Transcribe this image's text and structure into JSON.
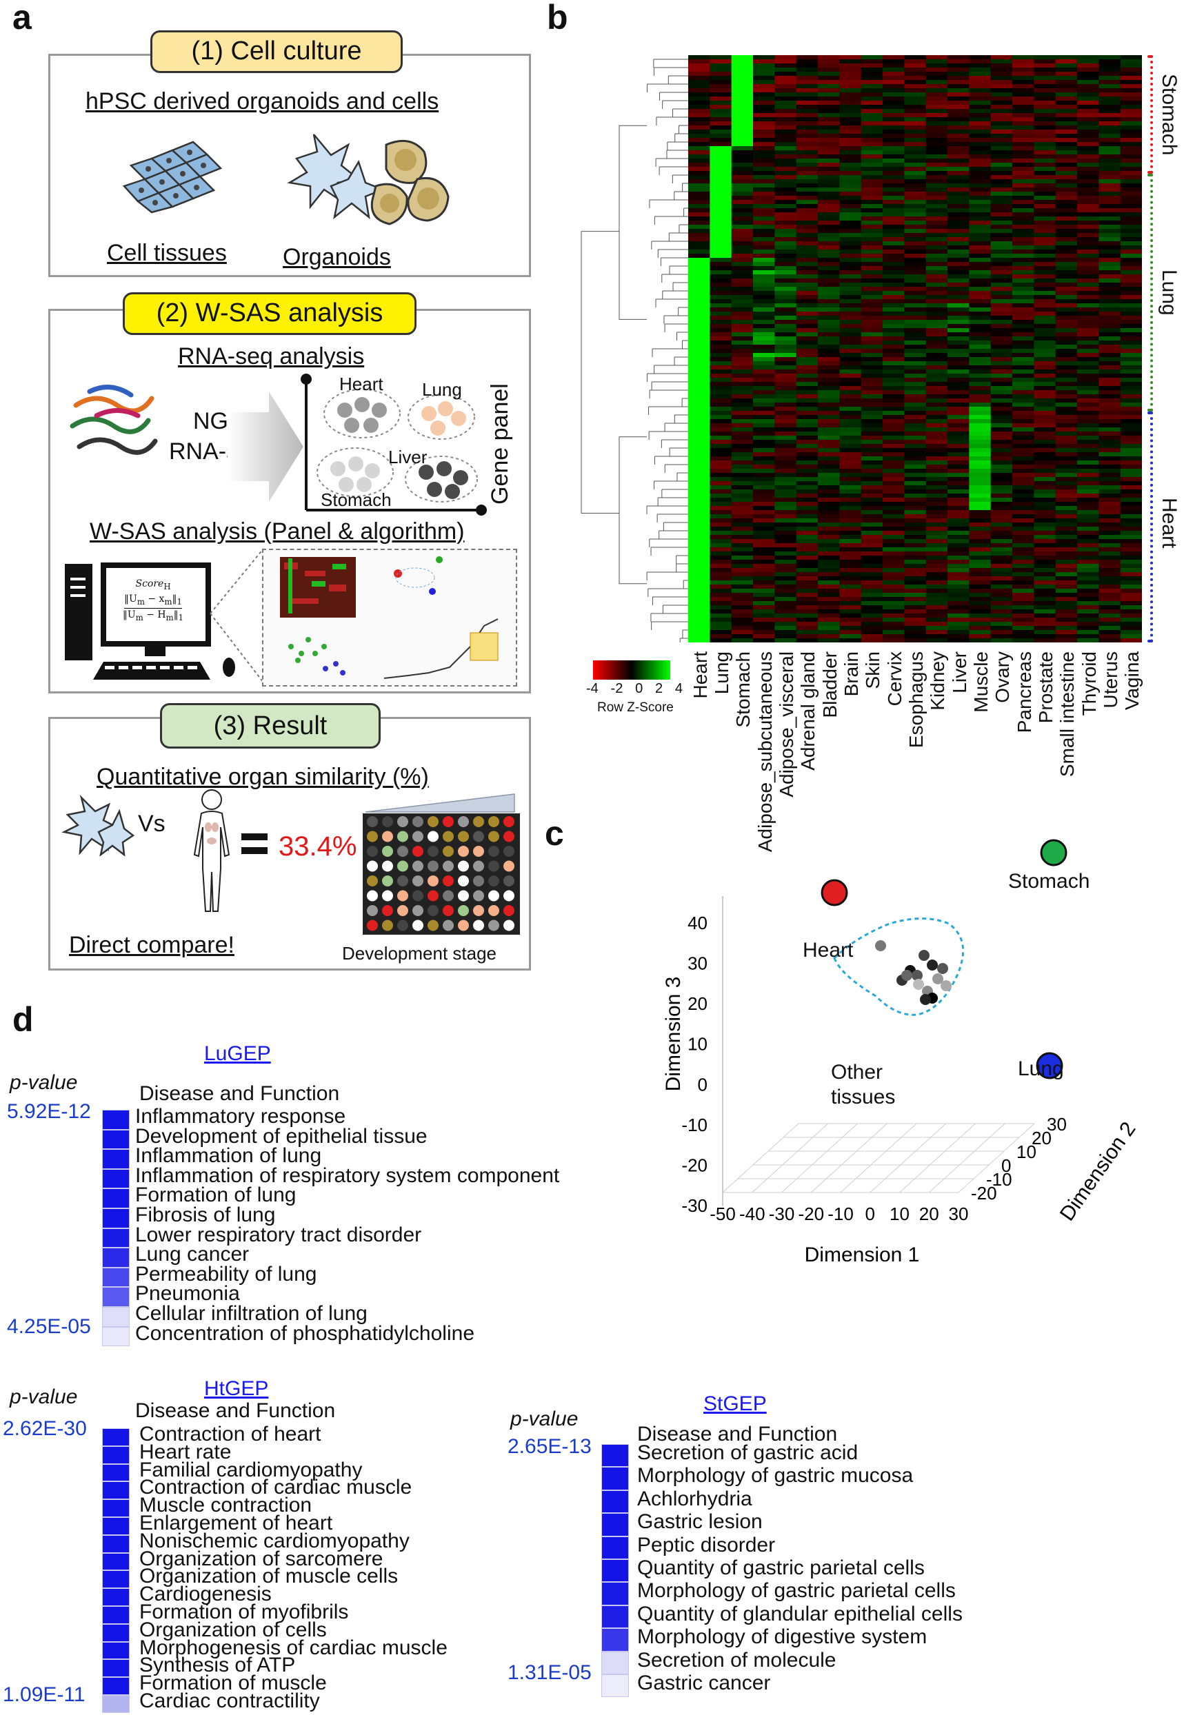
{
  "panels": {
    "a": "a",
    "b": "b",
    "c": "c",
    "d": "d"
  },
  "a": {
    "step1": {
      "tag": "(1) Cell culture",
      "title": "hPSC derived organoids and cells",
      "cell_tissues": "Cell tissues",
      "organoids": "Organoids"
    },
    "step2": {
      "tag": "(2) W-SAS analysis",
      "rnaseq_title": "RNA-seq analysis",
      "ngs": "NGS",
      "rnaseq": "RNA-seq",
      "heart": "Heart",
      "lung": "Lung",
      "liver": "Liver",
      "stomach": "Stomach",
      "gene_panel": "Gene panel",
      "wsas_title": "W-SAS analysis (Panel & algorithm)",
      "score_line1": "Score",
      "score_sub": "H",
      "score_num": "‖U",
      "score_num_sub1": "m",
      "score_num_mid": " − x",
      "score_num_sub2": "m",
      "score_num_end": "‖",
      "score_num_norm": "1",
      "score_den": "‖U",
      "score_den_sub1": "m",
      "score_den_mid": " − H",
      "score_den_sub2": "m",
      "score_den_end": "‖",
      "score_den_norm": "1"
    },
    "step3": {
      "tag": "(3) Result",
      "title": "Quantitative organ similarity (%)",
      "vs": "Vs",
      "percent": "33.4%",
      "direct": "Direct compare!",
      "dev_stage": "Development stage"
    }
  },
  "b": {
    "columns": [
      "Heart",
      "Lung",
      "Stomach",
      "Adipose_subcutaneous",
      "Adipose_visceral",
      "Adrenal gland",
      "Bladder",
      "Brain",
      "Skin",
      "Cervix",
      "Esophagus",
      "Kidney",
      "Liver",
      "Muscle",
      "Ovary",
      "Pancreas",
      "Prostate",
      "Small intestine",
      "Thyroid",
      "Uterus",
      "Vagina"
    ],
    "row_groups": [
      "Stomach",
      "Lung",
      "Heart"
    ],
    "group_colors": {
      "Stomach": "#e02020",
      "Lung": "#3a8a2a",
      "Heart": "#2030d0"
    },
    "legend": {
      "ticks": [
        "-4",
        "-2",
        "0",
        "2",
        "4"
      ],
      "label": "Row Z-Score"
    }
  },
  "c": {
    "chart_data": {
      "type": "scatter",
      "xlabel": "Dimension 1",
      "ylabel": "Dimension 3",
      "zlabel": "Dimension 2",
      "x_ticks": [
        "-50",
        "-40",
        "-30",
        "-20",
        "-10",
        "0",
        "10",
        "20",
        "30"
      ],
      "y_ticks": [
        "40",
        "30",
        "20",
        "10",
        "0",
        "-10",
        "-20",
        "-30"
      ],
      "z_ticks": [
        "30",
        "20",
        "10",
        "0",
        "-10",
        "-20"
      ],
      "labeled_points": [
        {
          "name": "Stomach",
          "color": "#1faa4a"
        },
        {
          "name": "Heart",
          "color": "#e02020"
        },
        {
          "name": "Lung",
          "color": "#1a2ee0"
        }
      ],
      "cluster_label": "Other tissues"
    }
  },
  "d": {
    "lu": {
      "title": "LuGEP",
      "pvalue_label": "p-value",
      "header": "Disease and Function",
      "top": "5.92E-12",
      "bottom": "4.25E-05",
      "items": [
        "Inflammatory response",
        "Development of epithelial tissue",
        "Inflammation of lung",
        "Inflammation of respiratory system component",
        "Formation of lung",
        "Fibrosis of lung",
        "Lower respiratory tract disorder",
        "Lung cancer",
        "Permeability of lung",
        "Pneumonia",
        "Cellular infiltration of lung",
        "Concentration of phosphatidylcholine"
      ],
      "shades": [
        "#1414e6",
        "#1414e6",
        "#1414e6",
        "#1414e6",
        "#1414e6",
        "#1414e6",
        "#1a1ae6",
        "#2a2ae8",
        "#4848ee",
        "#5a5af0",
        "#dedef8",
        "#e8e8fa"
      ]
    },
    "ht": {
      "title": "HtGEP",
      "pvalue_label": "p-value",
      "header": "Disease and Function",
      "top": "2.62E-30",
      "bottom": "1.09E-11",
      "items": [
        "Contraction of heart",
        "Heart rate",
        "Familial cardiomyopathy",
        "Contraction of cardiac muscle",
        "Muscle contraction",
        "Enlargement of heart",
        "Nonischemic cardiomyopathy",
        "Organization of sarcomere",
        "Organization of muscle cells",
        "Cardiogenesis",
        "Formation of myofibrils",
        "Organization of cells",
        "Morphogenesis of cardiac muscle",
        "Synthesis of ATP",
        "Formation of muscle",
        "Cardiac contractility"
      ],
      "shades": [
        "#1414e6",
        "#1414e6",
        "#1414e6",
        "#1414e6",
        "#1414e6",
        "#1414e6",
        "#1414e6",
        "#1414e6",
        "#1414e6",
        "#1414e6",
        "#1414e6",
        "#1414e6",
        "#1414e6",
        "#1414e6",
        "#1414e6",
        "#b4b4f0"
      ]
    },
    "st": {
      "title": "StGEP",
      "pvalue_label": "p-value",
      "header": "Disease and Function",
      "top": "2.65E-13",
      "bottom": "1.31E-05",
      "items": [
        "Secretion of gastric acid",
        "Morphology of gastric mucosa",
        "Achlorhydria",
        "Gastric lesion",
        "Peptic disorder",
        "Quantity of gastric parietal cells",
        "Morphology of gastric parietal cells",
        "Quantity of glandular epithelial cells",
        "Morphology of digestive system",
        "Secretion of molecule",
        "Gastric cancer"
      ],
      "shades": [
        "#1414e6",
        "#1414e6",
        "#1414e6",
        "#1414e6",
        "#1414e6",
        "#1414e6",
        "#1a1ae6",
        "#1e1ee6",
        "#3838ea",
        "#dcdcf8",
        "#ececfa"
      ]
    }
  }
}
